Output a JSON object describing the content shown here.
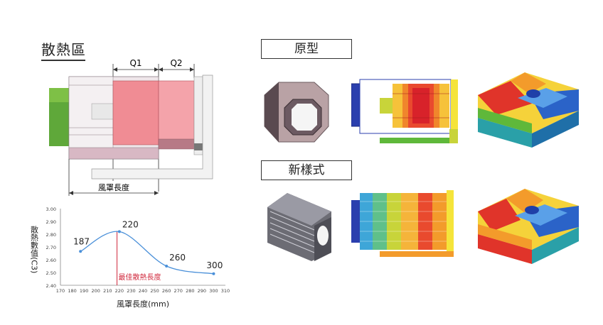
{
  "heat_zone_label": "散熱區",
  "q1_label": "Q1",
  "q2_label": "Q2",
  "hood_length_label": "風罩長度",
  "prototype_label": "原型",
  "new_style_label": "新樣式",
  "colors": {
    "hot": "#e0342a",
    "warm": "#f39b2b",
    "mid": "#f5e43a",
    "cool": "#2b63c8",
    "cold": "#1f3fa8",
    "series": "#4a90d9",
    "optimum": "#d0283c"
  },
  "chart_data": {
    "type": "line",
    "x": [
      187,
      220,
      260,
      300
    ],
    "y": [
      2.665,
      2.82,
      2.55,
      2.49
    ],
    "point_labels": [
      "187",
      "220",
      "260",
      "300"
    ],
    "xlabel": "風罩長度(mm)",
    "ylabel": "散熱數值(C3)",
    "xlim": [
      170,
      310
    ],
    "ylim": [
      2.4,
      3.0
    ],
    "xticks": [
      "170",
      "180",
      "190",
      "200",
      "210",
      "220",
      "230",
      "240",
      "250",
      "260",
      "270",
      "280",
      "290",
      "300",
      "310"
    ],
    "yticks": [
      "2.40",
      "2.50",
      "2.60",
      "2.70",
      "2.80",
      "2.90",
      "3.00"
    ],
    "optimum_x": 218,
    "optimum_label": "最佳散熱長度",
    "grid": false
  }
}
